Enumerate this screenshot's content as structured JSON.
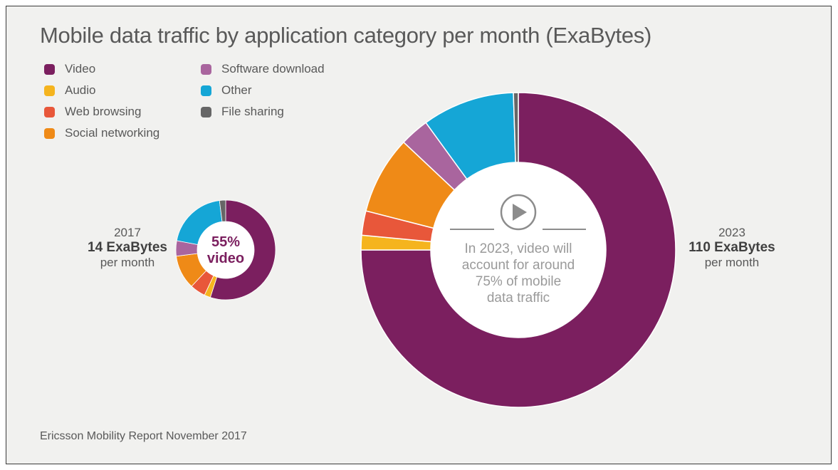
{
  "title": "Mobile data traffic by application category per month (ExaBytes)",
  "legend": [
    {
      "label": "Video",
      "color": "#7b1f5f"
    },
    {
      "label": "Audio",
      "color": "#f5b41e"
    },
    {
      "label": "Web browsing",
      "color": "#e8573a"
    },
    {
      "label": "Social networking",
      "color": "#ef8a17"
    },
    {
      "label": "Software download",
      "color": "#a9659e"
    },
    {
      "label": "Other",
      "color": "#15a6d6"
    },
    {
      "label": "File sharing",
      "color": "#666666"
    }
  ],
  "chart_data": [
    {
      "type": "pie",
      "year": "2017",
      "total": "14 ExaBytes",
      "unit": "per month",
      "center_text": [
        "55%",
        "video"
      ],
      "slices": [
        {
          "name": "Video",
          "value": 55
        },
        {
          "name": "Audio",
          "value": 2
        },
        {
          "name": "Web browsing",
          "value": 5
        },
        {
          "name": "Social networking",
          "value": 11
        },
        {
          "name": "Software download",
          "value": 5
        },
        {
          "name": "Other",
          "value": 20
        },
        {
          "name": "File sharing",
          "value": 2
        }
      ]
    },
    {
      "type": "pie",
      "year": "2023",
      "total": "110 ExaBytes",
      "unit": "per month",
      "center_text": [
        "In 2023, video will",
        "account for around",
        "75% of mobile",
        "data traffic"
      ],
      "slices": [
        {
          "name": "Video",
          "value": 75
        },
        {
          "name": "Audio",
          "value": 1.5
        },
        {
          "name": "Web browsing",
          "value": 2.5
        },
        {
          "name": "Social networking",
          "value": 8
        },
        {
          "name": "Software download",
          "value": 3
        },
        {
          "name": "Other",
          "value": 9.5
        },
        {
          "name": "File sharing",
          "value": 0.5
        }
      ]
    }
  ],
  "source": "Ericsson Mobility Report November 2017",
  "colors": {
    "background": "#f1f1ef",
    "text": "#595959",
    "video": "#7b1f5f",
    "center_muted": "#9a9a9a"
  }
}
